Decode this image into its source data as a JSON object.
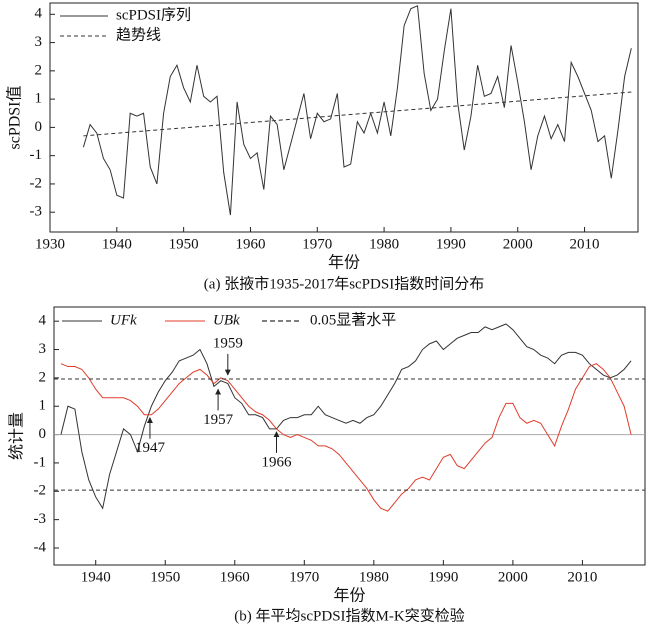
{
  "chart_data": [
    {
      "type": "line",
      "xlabel": "年份",
      "ylabel": "scPDSI值",
      "caption": "(a) 张掖市1935-2017年scPDSI指数时间分布",
      "xlim": [
        1930,
        2018
      ],
      "xticks": [
        1930,
        1940,
        1950,
        1960,
        1970,
        1980,
        1990,
        2000,
        2010
      ],
      "ylim": [
        -3.7,
        4.4
      ],
      "yticks": [
        -3,
        -2,
        -1,
        0,
        1,
        2,
        3,
        4
      ],
      "legend": "upper left",
      "x": [
        1935,
        1936,
        1937,
        1938,
        1939,
        1940,
        1941,
        1942,
        1943,
        1944,
        1945,
        1946,
        1947,
        1948,
        1949,
        1950,
        1951,
        1952,
        1953,
        1954,
        1955,
        1956,
        1957,
        1958,
        1959,
        1960,
        1961,
        1962,
        1963,
        1964,
        1965,
        1966,
        1967,
        1968,
        1969,
        1970,
        1971,
        1972,
        1973,
        1974,
        1975,
        1976,
        1977,
        1978,
        1979,
        1980,
        1981,
        1982,
        1983,
        1984,
        1985,
        1986,
        1987,
        1988,
        1989,
        1990,
        1991,
        1992,
        1993,
        1994,
        1995,
        1996,
        1997,
        1998,
        1999,
        2000,
        2001,
        2002,
        2003,
        2004,
        2005,
        2006,
        2007,
        2008,
        2009,
        2010,
        2011,
        2012,
        2013,
        2014,
        2015,
        2016,
        2017
      ],
      "series": [
        {
          "name": "scPDSI序列",
          "color": "#333333",
          "dash": "solid",
          "values": [
            -0.7,
            0.1,
            -0.2,
            -1.1,
            -1.5,
            -2.4,
            -2.5,
            0.5,
            0.4,
            0.5,
            -1.4,
            -2.0,
            0.5,
            1.8,
            2.2,
            1.4,
            0.9,
            2.2,
            1.1,
            0.9,
            1.1,
            -1.6,
            -3.1,
            0.9,
            -0.6,
            -1.1,
            -0.9,
            -2.2,
            0.4,
            0.1,
            -1.5,
            -0.6,
            0.3,
            1.2,
            -0.4,
            0.5,
            0.2,
            0.3,
            1.2,
            -1.4,
            -1.3,
            0.2,
            -0.2,
            0.5,
            -0.2,
            0.9,
            -0.3,
            1.4,
            3.6,
            4.2,
            4.3,
            1.9,
            0.6,
            1.0,
            2.7,
            4.2,
            0.9,
            -0.8,
            0.4,
            2.2,
            1.1,
            1.2,
            1.8,
            0.7,
            2.9,
            1.6,
            0.2,
            -1.5,
            -0.3,
            0.4,
            -0.4,
            0.1,
            -0.5,
            2.3,
            1.8,
            1.2,
            0.6,
            -0.5,
            -0.3,
            -1.8,
            -0.1,
            1.8,
            2.8
          ]
        },
        {
          "name": "趋势线",
          "color": "#333333",
          "dash": "dashed",
          "x": [
            1935,
            2017
          ],
          "values": [
            -0.3,
            1.25
          ]
        }
      ]
    },
    {
      "type": "line",
      "xlabel": "年份",
      "ylabel": "统计量",
      "caption": "(b) 年平均scPDSI指数M-K突变检验",
      "xlim": [
        1934,
        2019
      ],
      "xticks": [
        1940,
        1950,
        1960,
        1970,
        1980,
        1990,
        2000,
        2010
      ],
      "ylim": [
        -4.6,
        4.5
      ],
      "yticks": [
        -4,
        -3,
        -2,
        -1,
        0,
        1,
        2,
        3,
        4
      ],
      "legend": "upper left",
      "baseline": 0,
      "x": [
        1935,
        1936,
        1937,
        1938,
        1939,
        1940,
        1941,
        1942,
        1943,
        1944,
        1945,
        1946,
        1947,
        1948,
        1949,
        1950,
        1951,
        1952,
        1953,
        1954,
        1955,
        1956,
        1957,
        1958,
        1959,
        1960,
        1961,
        1962,
        1963,
        1964,
        1965,
        1966,
        1967,
        1968,
        1969,
        1970,
        1971,
        1972,
        1973,
        1974,
        1975,
        1976,
        1977,
        1978,
        1979,
        1980,
        1981,
        1982,
        1983,
        1984,
        1985,
        1986,
        1987,
        1988,
        1989,
        1990,
        1991,
        1992,
        1993,
        1994,
        1995,
        1996,
        1997,
        1998,
        1999,
        2000,
        2001,
        2002,
        2003,
        2004,
        2005,
        2006,
        2007,
        2008,
        2009,
        2010,
        2011,
        2012,
        2013,
        2014,
        2015,
        2016,
        2017
      ],
      "series": [
        {
          "name": "UFk",
          "color": "#333333",
          "dash": "solid",
          "values": [
            0,
            1.0,
            0.9,
            -0.6,
            -1.6,
            -2.2,
            -2.6,
            -1.4,
            -0.6,
            0.2,
            0.0,
            -0.6,
            0.3,
            1.0,
            1.5,
            1.9,
            2.2,
            2.6,
            2.7,
            2.8,
            3.0,
            2.5,
            1.7,
            1.9,
            1.8,
            1.3,
            1.1,
            0.7,
            0.7,
            0.6,
            0.2,
            0.2,
            0.5,
            0.6,
            0.6,
            0.7,
            0.7,
            1.0,
            0.7,
            0.6,
            0.5,
            0.4,
            0.5,
            0.4,
            0.6,
            0.7,
            1.0,
            1.4,
            1.8,
            2.3,
            2.4,
            2.6,
            3.0,
            3.2,
            3.3,
            3.0,
            3.2,
            3.4,
            3.5,
            3.6,
            3.6,
            3.8,
            3.7,
            3.8,
            3.9,
            3.7,
            3.4,
            3.1,
            3.0,
            2.8,
            2.7,
            2.5,
            2.8,
            2.9,
            2.9,
            2.8,
            2.5,
            2.3,
            2.1,
            2.0,
            2.1,
            2.3,
            2.6
          ]
        },
        {
          "name": "UBk",
          "color": "#e03c2a",
          "dash": "solid",
          "values": [
            2.5,
            2.4,
            2.4,
            2.3,
            2.0,
            1.6,
            1.3,
            1.3,
            1.3,
            1.3,
            1.2,
            1.0,
            0.7,
            0.7,
            0.9,
            1.2,
            1.5,
            1.8,
            2.0,
            2.2,
            2.3,
            2.1,
            1.8,
            2.0,
            1.9,
            1.6,
            1.3,
            1.0,
            0.8,
            0.7,
            0.5,
            0.2,
            0.0,
            -0.1,
            0.0,
            -0.1,
            -0.2,
            -0.4,
            -0.4,
            -0.5,
            -0.7,
            -1.0,
            -1.3,
            -1.6,
            -1.9,
            -2.3,
            -2.6,
            -2.7,
            -2.4,
            -2.1,
            -1.9,
            -1.6,
            -1.5,
            -1.6,
            -1.2,
            -0.8,
            -0.7,
            -1.1,
            -1.2,
            -0.9,
            -0.6,
            -0.3,
            -0.1,
            0.6,
            1.1,
            1.1,
            0.6,
            0.4,
            0.5,
            0.4,
            0.0,
            -0.4,
            0.3,
            0.9,
            1.6,
            2.0,
            2.4,
            2.5,
            2.3,
            2.0,
            1.5,
            1.0,
            0.0
          ]
        }
      ],
      "reference_lines": [
        {
          "name": "0.05显著水平",
          "color": "#333333",
          "values": [
            1.96,
            -1.96
          ]
        }
      ],
      "annotations": [
        {
          "text": "1947",
          "x": 1947.8,
          "y": 0.7,
          "position": "below"
        },
        {
          "text": "1957",
          "x": 1957.6,
          "y": 1.7,
          "position": "below"
        },
        {
          "text": "1959",
          "x": 1959,
          "y": 2.0,
          "position": "above"
        },
        {
          "text": "1966",
          "x": 1966,
          "y": 0.2,
          "position": "below"
        }
      ]
    }
  ]
}
